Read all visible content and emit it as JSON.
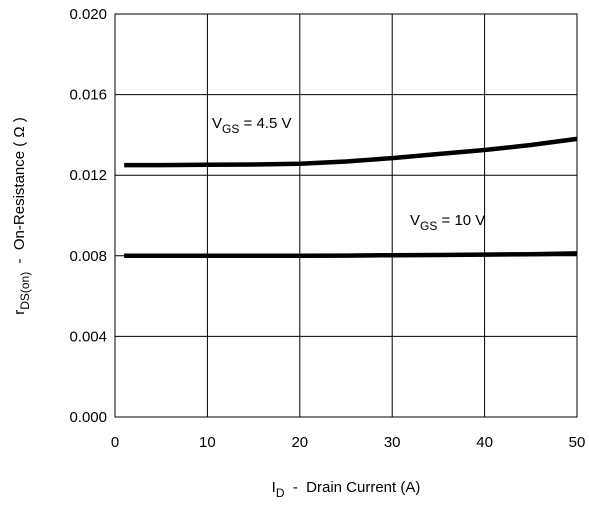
{
  "chart_data": {
    "type": "line",
    "xlabel": {
      "main": "I",
      "sub": "D",
      "rest": "  -  Drain Current (A)"
    },
    "ylabel": {
      "main": "r",
      "sub": "DS(on)",
      "rest": "  -  On-Resistance ( Ω )"
    },
    "xlim": [
      0,
      50
    ],
    "ylim": [
      0,
      0.02
    ],
    "xticks": [
      0,
      10,
      20,
      30,
      40,
      50
    ],
    "yticks": [
      0.0,
      0.004,
      0.008,
      0.012,
      0.016,
      0.02
    ],
    "x_tick_labels": [
      "0",
      "10",
      "20",
      "30",
      "40",
      "50"
    ],
    "y_tick_labels": [
      "0.000",
      "0.004",
      "0.008",
      "0.012",
      "0.016",
      "0.020"
    ],
    "grid": true,
    "series": [
      {
        "label": {
          "main": "V",
          "sub": "GS",
          "rest": " = 4.5 V"
        },
        "x": [
          1,
          5,
          10,
          15,
          20,
          25,
          30,
          35,
          40,
          45,
          50
        ],
        "y": [
          0.0125,
          0.0125,
          0.01252,
          0.01253,
          0.01257,
          0.01268,
          0.01285,
          0.01305,
          0.01325,
          0.0135,
          0.0138
        ]
      },
      {
        "label": {
          "main": "V",
          "sub": "GS",
          "rest": " = 10 V"
        },
        "x": [
          1,
          5,
          10,
          15,
          20,
          25,
          30,
          35,
          40,
          45,
          50
        ],
        "y": [
          0.008,
          0.008,
          0.008,
          0.008,
          0.008,
          0.00801,
          0.00803,
          0.00804,
          0.00806,
          0.00808,
          0.00812
        ]
      }
    ]
  }
}
